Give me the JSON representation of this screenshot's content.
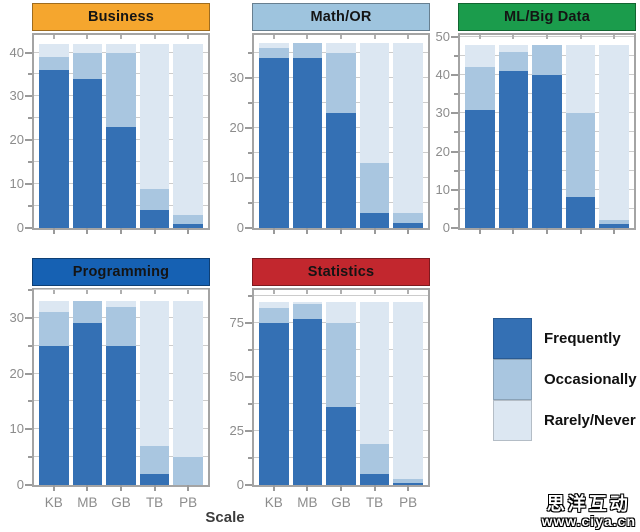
{
  "figure": {
    "xlabel": "Scale",
    "watermark_line1": "思洋互动",
    "watermark_line2": "www.ciya.cn"
  },
  "legend": {
    "items": [
      {
        "label": "Frequently",
        "color": "#3470B4"
      },
      {
        "label": "Occasionally",
        "color": "#A9C6E0"
      },
      {
        "label": "Rarely/Never",
        "color": "#DCE7F2"
      }
    ]
  },
  "chart_data": {
    "type": "bar",
    "stacked": true,
    "grid": true,
    "legend_position": "right-bottom",
    "categories": [
      "KB",
      "MB",
      "GB",
      "TB",
      "PB"
    ],
    "series_names": [
      "Frequently",
      "Occasionally",
      "Rarely/Never"
    ],
    "series_colors": [
      "#3470B4",
      "#A9C6E0",
      "#DCE7F2"
    ],
    "xlabel": "Scale",
    "panels": [
      {
        "title": "Business",
        "header_color": "#F5A62E",
        "ymax": 44,
        "yticks": [
          0,
          10,
          20,
          30,
          40
        ],
        "minor_step": 5,
        "show_x_labels": false,
        "stacks": [
          [
            36,
            3,
            3
          ],
          [
            34,
            6,
            2
          ],
          [
            23,
            17,
            2
          ],
          [
            4,
            5,
            33
          ],
          [
            1,
            2,
            39
          ]
        ]
      },
      {
        "title": "Math/OR",
        "header_color": "#9EC4DE",
        "ymax": 38.5,
        "yticks": [
          0,
          10,
          20,
          30
        ],
        "minor_step": 5,
        "show_x_labels": false,
        "stacks": [
          [
            34,
            2,
            1
          ],
          [
            34,
            3,
            0
          ],
          [
            23,
            12,
            2
          ],
          [
            3,
            10,
            24
          ],
          [
            1,
            2,
            34
          ]
        ]
      },
      {
        "title": "ML/Big Data",
        "header_color": "#1B9C4C",
        "ymax": 50.5,
        "yticks": [
          0,
          10,
          20,
          30,
          40,
          50
        ],
        "minor_step": 5,
        "show_x_labels": false,
        "stacks": [
          [
            31,
            11,
            6
          ],
          [
            41,
            5,
            2
          ],
          [
            40,
            8,
            0
          ],
          [
            8,
            22,
            18
          ],
          [
            1,
            1,
            46
          ]
        ]
      },
      {
        "title": "Programming",
        "header_color": "#1661B3",
        "ymax": 35,
        "yticks": [
          0,
          10,
          20,
          30
        ],
        "minor_step": 5,
        "show_x_labels": true,
        "stacks": [
          [
            25,
            6,
            2
          ],
          [
            29,
            4,
            0
          ],
          [
            25,
            7,
            1
          ],
          [
            2,
            5,
            26
          ],
          [
            0,
            5,
            28
          ]
        ]
      },
      {
        "title": "Statistics",
        "header_color": "#C2272E",
        "ymax": 90.5,
        "yticks": [
          0,
          25,
          50,
          75
        ],
        "minor_step": 12.5,
        "show_x_labels": true,
        "stacks": [
          [
            75,
            7,
            3
          ],
          [
            77,
            7,
            1
          ],
          [
            36,
            39,
            10
          ],
          [
            5,
            14,
            66
          ],
          [
            1,
            2,
            82
          ]
        ]
      }
    ]
  }
}
